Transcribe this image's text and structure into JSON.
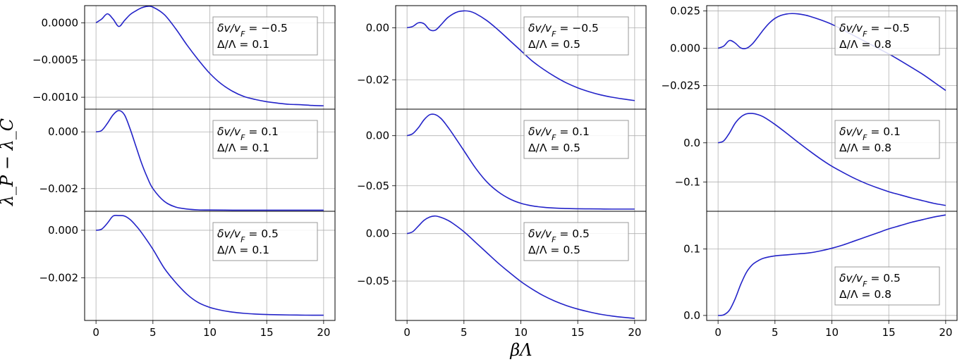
{
  "figure": {
    "ylabel": "λ_P − λ_C",
    "xlabel": "βΛ"
  },
  "chart_data": [
    {
      "type": "line",
      "column": 0,
      "row": 0,
      "legend": [
        "δv/v_F = −0.5",
        "Δ/Λ = 0.1"
      ],
      "legend_position": "top-right",
      "x_ticks": [
        "0",
        "5",
        "10",
        "15",
        "20"
      ],
      "y_ticks": [
        "0.0000",
        "−0.0005",
        "−0.0010"
      ],
      "y_tick_values": [
        0,
        -0.0005,
        -0.001
      ],
      "xlim": [
        -1,
        21
      ],
      "ylim": [
        -0.00116,
        0.00023
      ],
      "color": "#2323c8",
      "x": [
        0,
        0.5,
        1,
        1.5,
        2,
        2.5,
        3,
        3.5,
        4,
        4.5,
        5,
        6,
        7,
        8,
        9,
        10,
        11,
        12,
        13,
        14,
        15,
        16,
        17,
        18,
        19,
        20
      ],
      "y": [
        0,
        5e-05,
        0.00012,
        5e-05,
        -5e-05,
        3e-05,
        0.00011,
        0.00016,
        0.0002,
        0.00022,
        0.00021,
        0.00011,
        -8e-05,
        -0.0003,
        -0.0005,
        -0.00068,
        -0.00082,
        -0.00092,
        -0.00099,
        -0.00103,
        -0.00106,
        -0.00108,
        -0.001095,
        -0.0011,
        -0.00111,
        -0.001115
      ]
    },
    {
      "type": "line",
      "column": 0,
      "row": 1,
      "legend": [
        "δv/v_F = 0.1",
        "Δ/Λ = 0.1"
      ],
      "legend_position": "top-right",
      "x_ticks": [
        "0",
        "5",
        "10",
        "15",
        "20"
      ],
      "y_ticks": [
        "0.000",
        "−0.002"
      ],
      "y_tick_values": [
        0,
        -0.002
      ],
      "xlim": [
        -1,
        21
      ],
      "ylim": [
        -0.0028,
        0.0008
      ],
      "color": "#2323c8",
      "x": [
        0,
        0.5,
        1,
        1.5,
        2,
        2.5,
        3,
        3.5,
        4,
        4.5,
        5,
        6,
        7,
        8,
        9,
        10,
        12,
        14,
        16,
        18,
        20
      ],
      "y": [
        0,
        5e-05,
        0.0003,
        0.0006,
        0.00075,
        0.0006,
        0.0001,
        -0.0005,
        -0.0011,
        -0.0016,
        -0.002,
        -0.00245,
        -0.00265,
        -0.00272,
        -0.00275,
        -0.002755,
        -0.00276,
        -0.00276,
        -0.00276,
        -0.00276,
        -0.00276
      ]
    },
    {
      "type": "line",
      "column": 0,
      "row": 2,
      "legend": [
        "δv/v_F = 0.5",
        "Δ/Λ = 0.1"
      ],
      "legend_position": "top-right",
      "x_ticks": [
        "0",
        "5",
        "10",
        "15",
        "20"
      ],
      "y_ticks": [
        "0.000",
        "−0.002"
      ],
      "y_tick_values": [
        0,
        -0.002
      ],
      "xlim": [
        -1,
        21
      ],
      "ylim": [
        -0.0038,
        0.0008
      ],
      "color": "#2323c8",
      "x": [
        0,
        0.5,
        1,
        1.5,
        2,
        2.5,
        3,
        3.5,
        4,
        5,
        6,
        7,
        8,
        9,
        10,
        11,
        12,
        13,
        14,
        15,
        16,
        17,
        18,
        19,
        20
      ],
      "y": [
        0,
        5e-05,
        0.0003,
        0.0006,
        0.00062,
        0.0006,
        0.00045,
        0.0002,
        -0.0001,
        -0.0008,
        -0.0016,
        -0.0022,
        -0.0027,
        -0.00305,
        -0.00325,
        -0.00337,
        -0.00345,
        -0.0035,
        -0.00353,
        -0.00355,
        -0.00356,
        -0.00357,
        -0.003575,
        -0.00358,
        -0.00358
      ]
    },
    {
      "type": "line",
      "column": 1,
      "row": 0,
      "legend": [
        "δv/v_F = −0.5",
        "Δ/Λ = 0.5"
      ],
      "legend_position": "top-right",
      "x_ticks": [
        "0",
        "5",
        "10",
        "15",
        "20"
      ],
      "y_ticks": [
        "0.00",
        "−0.02"
      ],
      "y_tick_values": [
        0,
        -0.02
      ],
      "xlim": [
        -1,
        21
      ],
      "ylim": [
        -0.0313,
        0.0085
      ],
      "color": "#2323c8",
      "x": [
        0,
        0.5,
        1,
        1.5,
        2,
        2.5,
        3,
        3.5,
        4,
        4.5,
        5,
        5.5,
        6,
        7,
        8,
        9,
        10,
        11,
        12,
        13,
        14,
        15,
        16,
        17,
        18,
        19,
        20
      ],
      "y": [
        0,
        0.0005,
        0.0019,
        0.0015,
        -0.0008,
        -0.0009,
        0.0012,
        0.0036,
        0.0052,
        0.0062,
        0.0065,
        0.0063,
        0.0055,
        0.0028,
        -0.0008,
        -0.0048,
        -0.0088,
        -0.0128,
        -0.016,
        -0.0188,
        -0.0212,
        -0.0231,
        -0.0246,
        -0.0258,
        -0.0267,
        -0.0274,
        -0.028
      ]
    },
    {
      "type": "line",
      "column": 1,
      "row": 1,
      "legend": [
        "δv/v_F = 0.1",
        "Δ/Λ = 0.5"
      ],
      "legend_position": "top-right",
      "x_ticks": [
        "0",
        "5",
        "10",
        "15",
        "20"
      ],
      "y_ticks": [
        "0.00",
        "−0.05"
      ],
      "y_tick_values": [
        0,
        -0.05
      ],
      "xlim": [
        -1,
        21
      ],
      "ylim": [
        -0.0755,
        0.0265
      ],
      "color": "#2323c8",
      "x": [
        0,
        0.5,
        1,
        1.5,
        2,
        2.5,
        3,
        3.5,
        4,
        5,
        6,
        7,
        8,
        9,
        10,
        11,
        12,
        13,
        14,
        15,
        16,
        17,
        18,
        19,
        20
      ],
      "y": [
        0,
        0.002,
        0.008,
        0.016,
        0.021,
        0.021,
        0.017,
        0.01,
        0.002,
        -0.015,
        -0.032,
        -0.046,
        -0.056,
        -0.063,
        -0.0675,
        -0.0701,
        -0.0715,
        -0.0723,
        -0.0727,
        -0.073,
        -0.0731,
        -0.0732,
        -0.0733,
        -0.0733,
        -0.0733
      ]
    },
    {
      "type": "line",
      "column": 1,
      "row": 2,
      "legend": [
        "δv/v_F = 0.5",
        "Δ/Λ = 0.5"
      ],
      "legend_position": "top-right",
      "x_ticks": [
        "0",
        "5",
        "10",
        "15",
        "20"
      ],
      "y_ticks": [
        "0.00",
        "−0.05"
      ],
      "y_tick_values": [
        0,
        -0.05
      ],
      "xlim": [
        -1,
        21
      ],
      "ylim": [
        -0.0915,
        0.0235
      ],
      "color": "#2323c8",
      "x": [
        0,
        0.5,
        1,
        1.5,
        2,
        2.5,
        3,
        3.5,
        4,
        5,
        6,
        7,
        8,
        9,
        10,
        11,
        12,
        13,
        14,
        15,
        16,
        17,
        18,
        19,
        20
      ],
      "y": [
        0,
        0.002,
        0.008,
        0.014,
        0.0175,
        0.0185,
        0.017,
        0.0145,
        0.011,
        0.002,
        -0.009,
        -0.02,
        -0.031,
        -0.041,
        -0.0505,
        -0.0585,
        -0.0655,
        -0.0712,
        -0.0758,
        -0.0795,
        -0.0825,
        -0.085,
        -0.0868,
        -0.0882,
        -0.0893
      ]
    },
    {
      "type": "line",
      "column": 2,
      "row": 0,
      "legend": [
        "δv/v_F = −0.5",
        "Δ/Λ = 0.8"
      ],
      "legend_position": "top-right",
      "x_ticks": [
        "0",
        "5",
        "10",
        "15",
        "20"
      ],
      "y_ticks": [
        "0.025",
        "0.000",
        "−0.025"
      ],
      "y_tick_values": [
        0.025,
        0,
        -0.025
      ],
      "xlim": [
        -1,
        21
      ],
      "ylim": [
        -0.0407,
        0.0285
      ],
      "color": "#2323c8",
      "x": [
        0,
        0.5,
        1,
        1.5,
        2,
        2.5,
        3,
        3.5,
        4,
        4.5,
        5,
        5.5,
        6,
        6.5,
        7,
        7.5,
        8,
        9,
        10,
        11,
        12,
        13,
        14,
        15,
        16,
        17,
        18,
        19,
        20
      ],
      "y": [
        0,
        0.0015,
        0.0052,
        0.0035,
        0.0002,
        0,
        0.0028,
        0.0075,
        0.0125,
        0.0168,
        0.02,
        0.0219,
        0.0229,
        0.0232,
        0.023,
        0.0224,
        0.0215,
        0.019,
        0.016,
        0.0122,
        0.0082,
        0.0042,
        0.0002,
        -0.0038,
        -0.0082,
        -0.0128,
        -0.0175,
        -0.0228,
        -0.0282
      ]
    },
    {
      "type": "line",
      "column": 2,
      "row": 1,
      "legend": [
        "δv/v_F = 0.1",
        "Δ/Λ = 0.8"
      ],
      "legend_position": "top-right",
      "x_ticks": [
        "0",
        "5",
        "10",
        "15",
        "20"
      ],
      "y_ticks": [
        "0.0",
        "−0.1"
      ],
      "y_tick_values": [
        0,
        -0.1
      ],
      "xlim": [
        -1,
        21
      ],
      "ylim": [
        -0.175,
        0.086
      ],
      "color": "#2323c8",
      "x": [
        0,
        0.5,
        1,
        1.5,
        2,
        2.5,
        3,
        3.5,
        4,
        5,
        6,
        7,
        8,
        9,
        10,
        11,
        12,
        13,
        14,
        15,
        16,
        17,
        18,
        19,
        20
      ],
      "y": [
        0,
        0.005,
        0.025,
        0.05,
        0.066,
        0.074,
        0.075,
        0.072,
        0.066,
        0.047,
        0.025,
        0.002,
        -0.02,
        -0.041,
        -0.06,
        -0.076,
        -0.091,
        -0.104,
        -0.115,
        -0.125,
        -0.133,
        -0.141,
        -0.148,
        -0.155,
        -0.16
      ]
    },
    {
      "type": "line",
      "column": 2,
      "row": 2,
      "legend": [
        "δv/v_F = 0.5",
        "Δ/Λ = 0.8"
      ],
      "legend_position": "bottom-right",
      "x_ticks": [
        "0",
        "5",
        "10",
        "15",
        "20"
      ],
      "y_ticks": [
        "0.1",
        "0.0"
      ],
      "y_tick_values": [
        0.1,
        0
      ],
      "xlim": [
        -1,
        21
      ],
      "ylim": [
        -0.0075,
        0.1565
      ],
      "color": "#2323c8",
      "x": [
        0,
        0.5,
        1,
        1.5,
        2,
        2.5,
        3,
        3.5,
        4,
        5,
        6,
        7,
        8,
        9,
        10,
        11,
        12,
        13,
        14,
        15,
        16,
        17,
        18,
        19,
        20
      ],
      "y": [
        0,
        0.001,
        0.008,
        0.025,
        0.047,
        0.065,
        0.076,
        0.082,
        0.086,
        0.0895,
        0.091,
        0.0925,
        0.094,
        0.097,
        0.101,
        0.106,
        0.112,
        0.118,
        0.124,
        0.13,
        0.135,
        0.14,
        0.144,
        0.148,
        0.151
      ]
    }
  ]
}
